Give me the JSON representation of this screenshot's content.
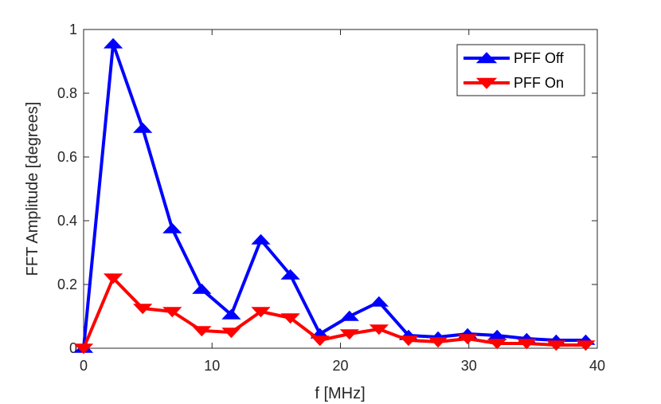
{
  "chart_data": {
    "type": "line",
    "title": "",
    "xlabel": "f [MHz]",
    "ylabel": "FFT Amplitude [degrees]",
    "xlim": [
      0,
      40
    ],
    "ylim": [
      0,
      1
    ],
    "xticks": [
      0,
      10,
      20,
      30,
      40
    ],
    "yticks": [
      0,
      0.2,
      0.4,
      0.6,
      0.8,
      1
    ],
    "xtick_labels": [
      "0",
      "10",
      "20",
      "30",
      "40"
    ],
    "ytick_labels": [
      "0",
      "0.2",
      "0.4",
      "0.6",
      "0.8",
      "1"
    ],
    "grid": false,
    "legend_position": "top-right",
    "x": [
      0,
      2.3,
      4.6,
      6.9,
      9.2,
      11.5,
      13.8,
      16.1,
      18.4,
      20.7,
      23.0,
      25.3,
      27.6,
      29.9,
      32.2,
      34.5,
      36.8,
      39.1
    ],
    "series": [
      {
        "name": "PFF Off",
        "color": "#0000ff",
        "marker": "triangle-up",
        "values": [
          0.0,
          0.955,
          0.69,
          0.375,
          0.185,
          0.105,
          0.34,
          0.23,
          0.045,
          0.1,
          0.145,
          0.04,
          0.035,
          0.045,
          0.04,
          0.03,
          0.025,
          0.025
        ]
      },
      {
        "name": "PFF On",
        "color": "#ff0000",
        "marker": "triangle-down",
        "values": [
          0.0,
          0.22,
          0.125,
          0.115,
          0.055,
          0.05,
          0.115,
          0.095,
          0.025,
          0.045,
          0.06,
          0.025,
          0.02,
          0.03,
          0.015,
          0.015,
          0.01,
          0.01
        ]
      }
    ]
  }
}
